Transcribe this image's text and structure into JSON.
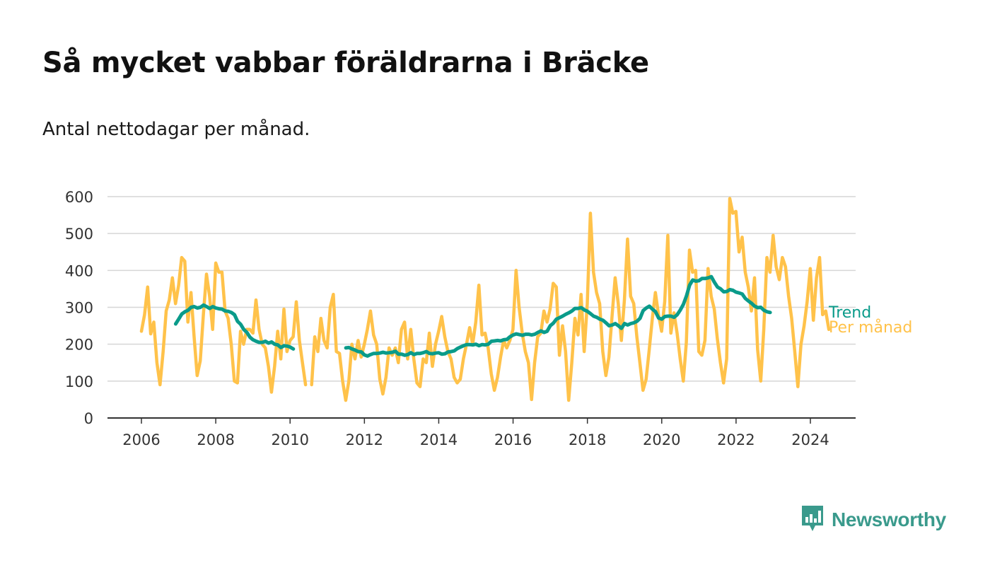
{
  "colors": {
    "monthly": "#ffc24a",
    "trend": "#0a9b8a",
    "grid": "#d6d6d6",
    "axis": "#333333",
    "brand": "#3a9a8c"
  },
  "chart_data": {
    "type": "line",
    "title": "Så mycket vabbar föräldrarna i Bräcke",
    "subtitle": "Antal nettodagar per månad.",
    "xlabel": "",
    "ylabel": "",
    "ylim": [
      0,
      600
    ],
    "yticks": [
      0,
      100,
      200,
      300,
      400,
      500,
      600
    ],
    "xlim": [
      2005.0,
      2025.25
    ],
    "xticks": [
      2006,
      2008,
      2010,
      2012,
      2014,
      2016,
      2018,
      2020,
      2022,
      2024
    ],
    "grid": true,
    "series": [
      {
        "name": "Per månad",
        "segments": [
          {
            "start": 2006.0,
            "values": [
              235,
              280,
              355,
              228,
              260,
              150,
              90,
              180,
              290,
              320,
              380,
              310,
              360,
              435,
              425,
              260,
              340,
              220,
              115,
              155,
              280,
              390,
              330,
              240,
              420,
              395,
              395,
              290,
              270,
              200,
              100,
              95,
              235,
              200,
              240,
              240,
              230,
              320,
              240,
              200,
              190,
              140,
              70,
              140,
              235,
              160,
              295,
              180,
              210,
              220,
              315,
              210,
              150,
              90
            ]
          },
          {
            "start": 2010.58,
            "values": [
              90,
              220,
              180,
              270,
              210,
              190,
              300,
              335,
              180,
              175,
              100,
              48,
              100,
              200,
              160,
              210,
              165,
              200,
              240,
              290,
              225,
              200,
              105,
              65,
              110,
              190,
              170,
              190,
              150,
              240,
              260,
              160,
              240,
              160,
              95,
              85,
              160,
              150,
              230,
              140,
              200,
              235,
              275,
              220,
              180,
              160,
              110,
              95,
              105,
              160,
              200,
              245,
              200,
              260,
              360,
              225,
              230,
              190,
              120,
              75,
              110,
              165,
              210,
              190,
              210,
              240,
              400,
              300,
              230,
              180,
              150,
              50,
              150,
              220,
              230,
              290,
              260,
              295,
              365,
              355,
              170,
              250,
              180,
              48,
              150,
              270,
              225,
              335,
              180,
              310,
              555,
              395,
              340,
              310,
              180,
              115,
              165,
              275,
              380,
              310,
              210,
              320,
              485,
              330,
              310,
              220,
              150,
              75,
              105,
              185,
              270,
              340,
              280,
              235,
              315,
              495,
              230,
              285,
              230,
              160,
              100,
              205,
              455,
              395,
              400,
              180,
              170,
              210,
              405,
              330,
              295,
              215,
              150,
              95,
              160,
              595,
              555,
              560,
              450,
              490,
              395,
              355,
              290,
              380,
              185,
              100,
              240,
              435,
              395,
              495,
              410,
              375,
              435,
              410,
              330,
              270,
              180,
              85,
              200,
              250,
              315,
              405,
              265,
              380,
              435,
              280,
              290,
              240
            ]
          }
        ]
      },
      {
        "name": "Trend",
        "segments": [
          {
            "start": 2006.92,
            "values": [
              255,
              268,
              282,
              288,
              292,
              300,
              302,
              298,
              300,
              306,
              302,
              297,
              302,
              298,
              296,
              295,
              290,
              289,
              286,
              280,
              262,
              254,
              240,
              232,
              219,
              212,
              208,
              205,
              205,
              208,
              203,
              206,
              200,
              198,
              191,
              196,
              195,
              192,
              187
            ]
          },
          {
            "start": 2011.5,
            "values": [
              190,
              191,
              187,
              184,
              180,
              179,
              171,
              168,
              172,
              175,
              175,
              176,
              178,
              176,
              177,
              178,
              181,
              173,
              173,
              170,
              172,
              177,
              172,
              175,
              175,
              177,
              180,
              175,
              174,
              176,
              177,
              173,
              174,
              179,
              180,
              182,
              188,
              192,
              196,
              199,
              199,
              198,
              200,
              196,
              199,
              198,
              200,
              208,
              209,
              210,
              209,
              212,
              213,
              220,
              225,
              228,
              226,
              224,
              227,
              227,
              225,
              227,
              232,
              236,
              232,
              235,
              250,
              257,
              268,
              272,
              276,
              281,
              285,
              290,
              297,
              297,
              299,
              293,
              289,
              283,
              276,
              273,
              268,
              265,
              258,
              250,
              252,
              256,
              250,
              243,
              256,
              252,
              256,
              258,
              262,
              270,
              291,
              298,
              303,
              295,
              288,
              271,
              268,
              275,
              276,
              276,
              273,
              280,
              293,
              308,
              331,
              360,
              374,
              371,
              372,
              378,
              378,
              380,
              383,
              368,
              355,
              350,
              342,
              343,
              348,
              346,
              341,
              339,
              336,
              324,
              317,
              311,
              303,
              299,
              300,
              292,
              288,
              286
            ]
          }
        ]
      }
    ]
  },
  "legend": {
    "trend": "Trend",
    "monthly": "Per månad"
  },
  "logo": {
    "brand": "Newsworthy",
    "icon": "newsworthy-bar-chart-icon"
  }
}
